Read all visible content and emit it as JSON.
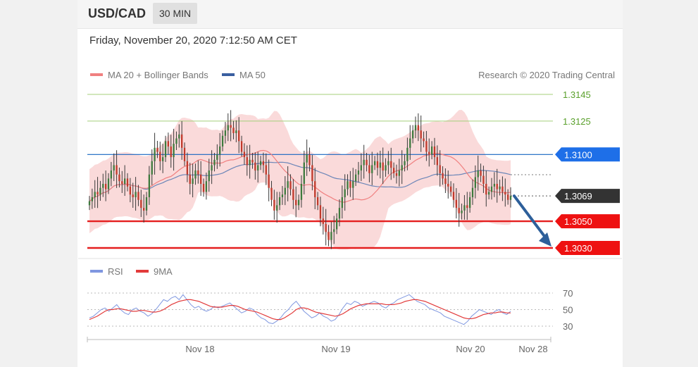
{
  "header": {
    "pair": "USD/CAD",
    "timeframe": "30 MIN",
    "datetime": "Friday, November 20, 2020 7:12:50 AM CET"
  },
  "legend": {
    "ma20": "MA 20 + Bollinger Bands",
    "ma50": "MA 50",
    "copyright": "Research © 2020 Trading Central"
  },
  "rsi_legend": {
    "rsi": "RSI",
    "ma": "9MA"
  },
  "x_ticks": [
    "Nov 18",
    "Nov 19",
    "Nov 20",
    "Nov 28"
  ],
  "colors": {
    "up_candle": "#3e7a3e",
    "down_candle": "#c0392b",
    "bands_fill": "#f9d4d4",
    "ma20": "#f08080",
    "ma50": "#6c86b8",
    "target": "#7cb342",
    "pivot": "#1565c0",
    "support": "#e41e1e",
    "current": "#333333",
    "arrow": "#2d5f9a",
    "rsi": "#7f97e0",
    "rsi_ma": "#e23b3b"
  },
  "chart_data": [
    {
      "type": "candlestick",
      "ylim": [
        1.3025,
        1.3152
      ],
      "levels": [
        {
          "label": "1.3145",
          "value": 1.3145,
          "kind": "target"
        },
        {
          "label": "1.3125",
          "value": 1.3125,
          "kind": "target"
        },
        {
          "label": "1.3100",
          "value": 1.31,
          "kind": "pivot"
        },
        {
          "label": "1.3069",
          "value": 1.3069,
          "kind": "current"
        },
        {
          "label": "1.3050",
          "value": 1.305,
          "kind": "support"
        },
        {
          "label": "1.3030",
          "value": 1.303,
          "kind": "support"
        }
      ],
      "close": [
        1.3065,
        1.3068,
        1.3072,
        1.307,
        1.3075,
        1.3078,
        1.3074,
        1.3082,
        1.3088,
        1.3092,
        1.3085,
        1.308,
        1.3078,
        1.3082,
        1.3076,
        1.307,
        1.3068,
        1.3072,
        1.3066,
        1.306,
        1.3058,
        1.3068,
        1.3085,
        1.3095,
        1.3105,
        1.3102,
        1.3095,
        1.3098,
        1.311,
        1.3106,
        1.3098,
        1.3108,
        1.3112,
        1.3115,
        1.3105,
        1.3095,
        1.3085,
        1.3078,
        1.3082,
        1.3088,
        1.3085,
        1.3078,
        1.3072,
        1.308,
        1.3088,
        1.3092,
        1.3096,
        1.31,
        1.3106,
        1.3114,
        1.3118,
        1.3122,
        1.312,
        1.3116,
        1.3118,
        1.311,
        1.3102,
        1.3098,
        1.3092,
        1.3096,
        1.3094,
        1.3088,
        1.3092,
        1.3095,
        1.3092,
        1.3085,
        1.3075,
        1.3066,
        1.3058,
        1.3062,
        1.3068,
        1.307,
        1.3075,
        1.308,
        1.3074,
        1.3066,
        1.3062,
        1.3066,
        1.3078,
        1.3094,
        1.31,
        1.3092,
        1.308,
        1.3068,
        1.3062,
        1.3052,
        1.3048,
        1.3042,
        1.3036,
        1.3042,
        1.3044,
        1.3052,
        1.306,
        1.3068,
        1.3074,
        1.308,
        1.3075,
        1.308,
        1.3085,
        1.3088,
        1.3092,
        1.3096,
        1.3092,
        1.3086,
        1.3092,
        1.3095,
        1.309,
        1.3094,
        1.3088,
        1.3092,
        1.3095,
        1.309,
        1.3086,
        1.3084,
        1.3088,
        1.3092,
        1.3095,
        1.3105,
        1.3112,
        1.3118,
        1.3122,
        1.3118,
        1.3112,
        1.311,
        1.3102,
        1.31,
        1.3106,
        1.3098,
        1.3092,
        1.3086,
        1.3082,
        1.3078,
        1.3076,
        1.3072,
        1.3066,
        1.306,
        1.3056,
        1.3058,
        1.3062,
        1.306,
        1.3068,
        1.3075,
        1.3083,
        1.3088,
        1.3084,
        1.3078,
        1.307,
        1.3072,
        1.3076,
        1.3078,
        1.3074,
        1.3076,
        1.3072,
        1.307,
        1.3066,
        1.3069
      ],
      "ma20_end": 1.3072,
      "ma50_end": 1.3083
    },
    {
      "type": "line",
      "title": "RSI",
      "ylim": [
        25,
        75
      ],
      "y_ticks": [
        70,
        50,
        30
      ],
      "rsi": [
        40,
        42,
        46,
        50,
        52,
        48,
        52,
        56,
        50,
        46,
        44,
        50,
        52,
        48,
        46,
        42,
        45,
        50,
        56,
        62,
        60,
        64,
        66,
        62,
        68,
        62,
        56,
        52,
        54,
        50,
        48,
        50,
        54,
        52,
        54,
        56,
        58,
        54,
        50,
        46,
        48,
        52,
        50,
        44,
        40,
        38,
        34,
        33,
        36,
        40,
        46,
        50,
        56,
        60,
        54,
        48,
        44,
        40,
        42,
        46,
        42,
        40,
        36,
        38,
        44,
        52,
        58,
        56,
        60,
        58,
        54,
        56,
        58,
        60,
        58,
        54,
        52,
        56,
        58,
        62,
        64,
        66,
        68,
        64,
        60,
        58,
        56,
        52,
        50,
        48,
        46,
        42,
        40,
        38,
        36,
        34,
        32,
        36,
        42,
        46,
        50,
        48,
        46,
        44,
        48,
        50,
        46,
        44,
        48
      ],
      "ma9": [
        38,
        40,
        42,
        45,
        48,
        50,
        50,
        51,
        51,
        50,
        49,
        48,
        48,
        49,
        49,
        48,
        47,
        47,
        48,
        50,
        53,
        56,
        58,
        60,
        61,
        62,
        62,
        61,
        60,
        58,
        56,
        54,
        53,
        53,
        53,
        54,
        55,
        55,
        54,
        52,
        50,
        49,
        48,
        47,
        45,
        43,
        41,
        39,
        38,
        38,
        40,
        43,
        46,
        50,
        52,
        52,
        51,
        49,
        47,
        46,
        45,
        44,
        43,
        42,
        43,
        45,
        48,
        51,
        53,
        55,
        56,
        57,
        57,
        57,
        57,
        57,
        56,
        56,
        56,
        57,
        58,
        60,
        61,
        62,
        62,
        61,
        60,
        58,
        56,
        54,
        52,
        50,
        48,
        46,
        44,
        42,
        40,
        39,
        39,
        40,
        42,
        44,
        45,
        46,
        46,
        47,
        47,
        46,
        46
      ]
    }
  ]
}
